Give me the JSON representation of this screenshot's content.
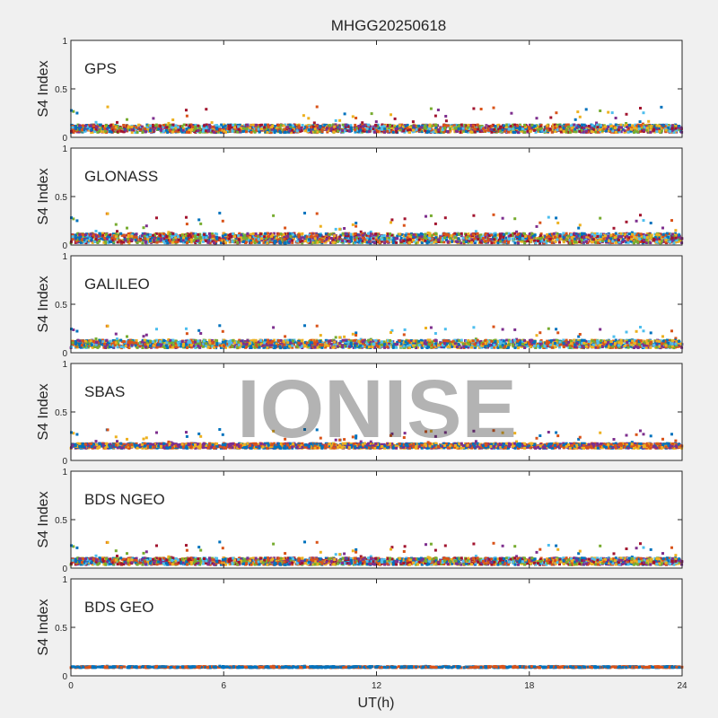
{
  "figure": {
    "title": "MHGG20250618",
    "watermark": "IONISE",
    "xlabel": "UT(h)",
    "background": "#f0f0f0",
    "axes_background": "#ffffff"
  },
  "chart_data": {
    "type": "scatter",
    "xlim": [
      0,
      24
    ],
    "x_ticks": [
      0,
      6,
      12,
      18,
      24
    ],
    "x_tick_labels": [
      "0",
      "6",
      "12",
      "18",
      "24"
    ],
    "ylim": [
      0,
      1
    ],
    "y_ticks": [
      0,
      0.5,
      1
    ],
    "y_tick_labels": [
      "0",
      "0.5",
      "1"
    ],
    "series_colors": [
      "#0072bd",
      "#d95319",
      "#edb120",
      "#7e2f8e",
      "#77ac30",
      "#4dbeee",
      "#a2142f"
    ],
    "panels": [
      {
        "label": "GPS",
        "ylabel": "S4 Index",
        "baseline": 0.09,
        "spread": 0.04,
        "spike_max": 0.32,
        "colors": [
          0,
          1,
          2,
          3,
          4,
          5,
          6
        ]
      },
      {
        "label": "GLONASS",
        "ylabel": "S4 Index",
        "baseline": 0.07,
        "spread": 0.05,
        "spike_max": 0.33,
        "colors": [
          0,
          1,
          2,
          3,
          4,
          5,
          6
        ]
      },
      {
        "label": "GALILEO",
        "ylabel": "S4 Index",
        "baseline": 0.09,
        "spread": 0.04,
        "spike_max": 0.28,
        "colors": [
          0,
          1,
          2,
          3,
          4,
          5
        ]
      },
      {
        "label": "SBAS",
        "ylabel": "S4 Index",
        "baseline": 0.15,
        "spread": 0.025,
        "spike_max": 0.32,
        "colors": [
          0,
          1,
          2,
          3
        ]
      },
      {
        "label": "BDS NGEO",
        "ylabel": "S4 Index",
        "baseline": 0.07,
        "spread": 0.035,
        "spike_max": 0.27,
        "colors": [
          0,
          1,
          2,
          3,
          4,
          5,
          6
        ]
      },
      {
        "label": "BDS GEO",
        "ylabel": "S4 Index",
        "baseline": 0.09,
        "spread": 0.006,
        "spike_max": 0.1,
        "colors": [
          0,
          1
        ]
      }
    ]
  }
}
